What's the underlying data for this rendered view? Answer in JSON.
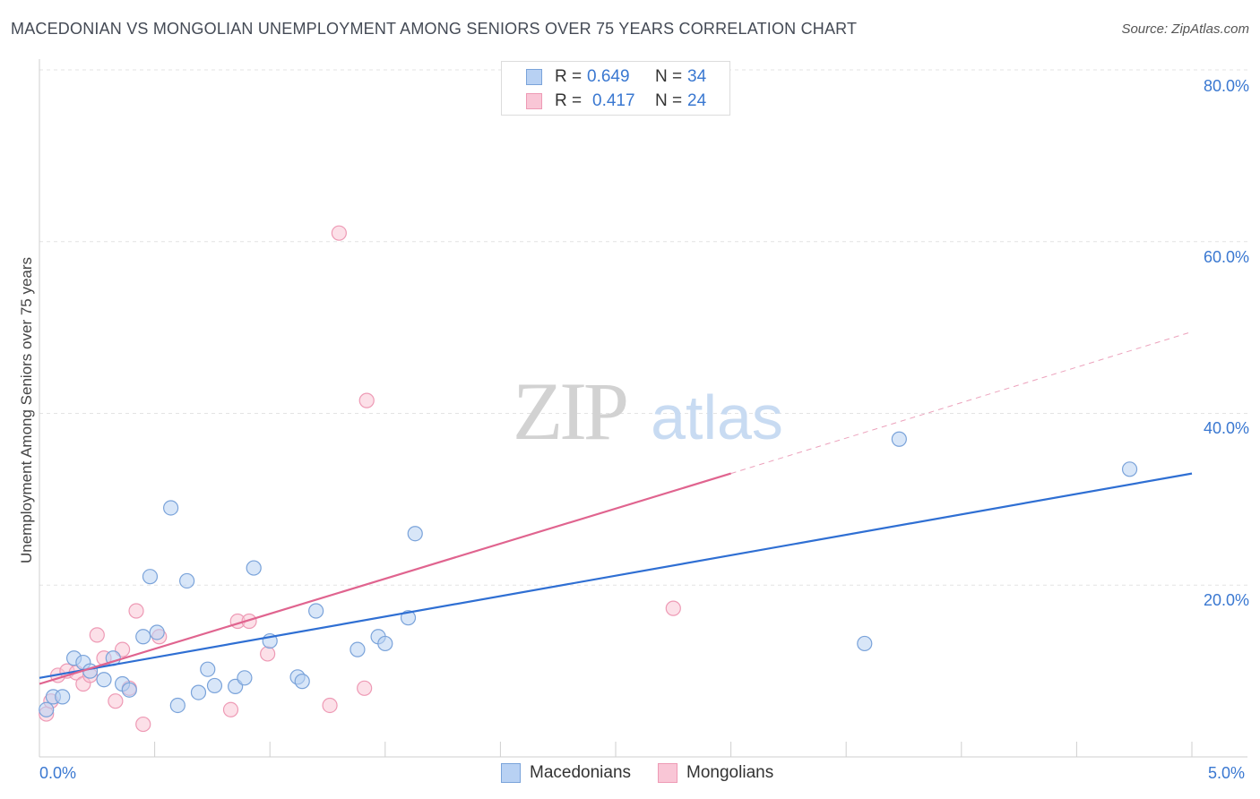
{
  "title": "MACEDONIAN VS MONGOLIAN UNEMPLOYMENT AMONG SENIORS OVER 75 YEARS CORRELATION CHART",
  "source": "Source: ZipAtlas.com",
  "watermark": {
    "zip": "ZIP",
    "atlas": "atlas"
  },
  "legend": {
    "macedonians": {
      "r_label": "R =",
      "r_value": "0.649",
      "n_label": "N =",
      "n_value": "34"
    },
    "mongolians": {
      "r_label": "R =",
      "r_value": "0.417",
      "n_label": "N =",
      "n_value": "24"
    }
  },
  "bottom_legend": {
    "macedonians": "Macedonians",
    "mongolians": "Mongolians"
  },
  "colors": {
    "macedonians_fill": "#b8d1f3",
    "macedonians_stroke": "#7aa3da",
    "macedonians_line": "#2f6fd3",
    "mongolians_fill": "#f9c6d6",
    "mongolians_stroke": "#ee9ab5",
    "mongolians_line": "#e0648f",
    "grid": "#e3e3e3",
    "axis_text": "#3a78d1"
  },
  "chart_data": {
    "type": "scatter",
    "title": "MACEDONIAN VS MONGOLIAN UNEMPLOYMENT AMONG SENIORS OVER 75 YEARS CORRELATION CHART",
    "xlabel": "",
    "ylabel": "Unemployment Among Seniors over 75 years",
    "xlim": [
      0,
      5
    ],
    "ylim": [
      0,
      80
    ],
    "x_ticks": [
      "0.0%",
      "5.0%"
    ],
    "y_ticks": [
      {
        "value": 20,
        "label": "20.0%"
      },
      {
        "value": 40,
        "label": "40.0%"
      },
      {
        "value": 60,
        "label": "60.0%"
      },
      {
        "value": 80,
        "label": "80.0%"
      }
    ],
    "series": [
      {
        "name": "Macedonians",
        "points": [
          [
            0.03,
            5.5
          ],
          [
            0.06,
            7.0
          ],
          [
            0.1,
            7.0
          ],
          [
            0.15,
            11.5
          ],
          [
            0.19,
            11.0
          ],
          [
            0.22,
            10.0
          ],
          [
            0.28,
            9.0
          ],
          [
            0.32,
            11.5
          ],
          [
            0.36,
            8.5
          ],
          [
            0.39,
            7.8
          ],
          [
            0.45,
            14.0
          ],
          [
            0.48,
            21.0
          ],
          [
            0.51,
            14.5
          ],
          [
            0.57,
            29.0
          ],
          [
            0.6,
            6.0
          ],
          [
            0.64,
            20.5
          ],
          [
            0.69,
            7.5
          ],
          [
            0.73,
            10.2
          ],
          [
            0.76,
            8.3
          ],
          [
            0.85,
            8.2
          ],
          [
            0.89,
            9.2
          ],
          [
            0.93,
            22.0
          ],
          [
            1.0,
            13.5
          ],
          [
            1.12,
            9.3
          ],
          [
            1.14,
            8.8
          ],
          [
            1.2,
            17.0
          ],
          [
            1.38,
            12.5
          ],
          [
            1.47,
            14.0
          ],
          [
            1.5,
            13.2
          ],
          [
            1.6,
            16.2
          ],
          [
            1.63,
            26.0
          ],
          [
            3.58,
            13.2
          ],
          [
            3.73,
            37.0
          ],
          [
            4.73,
            33.5
          ]
        ],
        "trend": {
          "x1": 0,
          "y1": 9.2,
          "x2": 5,
          "y2": 33.0
        }
      },
      {
        "name": "Mongolians",
        "points": [
          [
            0.03,
            5.0
          ],
          [
            0.05,
            6.5
          ],
          [
            0.08,
            9.5
          ],
          [
            0.12,
            10.0
          ],
          [
            0.16,
            9.8
          ],
          [
            0.19,
            8.5
          ],
          [
            0.22,
            9.5
          ],
          [
            0.25,
            14.2
          ],
          [
            0.28,
            11.5
          ],
          [
            0.33,
            6.5
          ],
          [
            0.36,
            12.5
          ],
          [
            0.39,
            8.0
          ],
          [
            0.42,
            17.0
          ],
          [
            0.45,
            3.8
          ],
          [
            0.52,
            14.0
          ],
          [
            0.83,
            5.5
          ],
          [
            0.86,
            15.8
          ],
          [
            0.91,
            15.8
          ],
          [
            0.99,
            12.0
          ],
          [
            1.26,
            6.0
          ],
          [
            1.3,
            61.0
          ],
          [
            1.41,
            8.0
          ],
          [
            1.42,
            41.5
          ],
          [
            2.75,
            17.3
          ]
        ],
        "trend": {
          "x1": 0,
          "y1": 8.5,
          "x2": 3.0,
          "y2": 33.0
        },
        "trend_dashed": {
          "x1": 3.0,
          "y1": 33.0,
          "x2": 5.0,
          "y2": 49.5
        }
      }
    ]
  }
}
